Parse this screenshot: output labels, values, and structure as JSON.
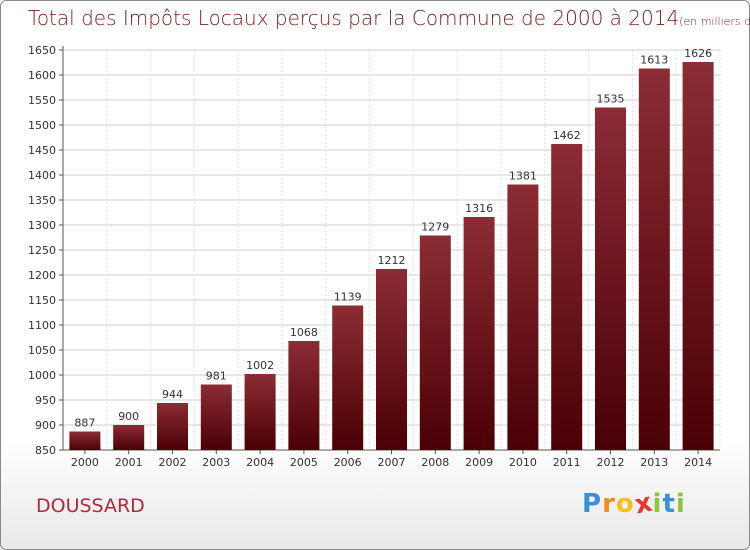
{
  "chart_data": {
    "type": "bar",
    "title": "Total des Impôts Locaux perçus par la Commune de 2000 à 2014",
    "subtitle": "(en milliers d'€)",
    "categories": [
      "2000",
      "2001",
      "2002",
      "2003",
      "2004",
      "2005",
      "2006",
      "2007",
      "2008",
      "2009",
      "2010",
      "2011",
      "2012",
      "2013",
      "2014"
    ],
    "values": [
      887,
      900,
      944,
      981,
      1002,
      1068,
      1139,
      1212,
      1279,
      1316,
      1381,
      1462,
      1535,
      1613,
      1626
    ],
    "ylim": [
      850,
      1650
    ],
    "yticks": [
      850,
      900,
      950,
      1000,
      1050,
      1100,
      1150,
      1200,
      1250,
      1300,
      1350,
      1400,
      1450,
      1500,
      1550,
      1600,
      1650
    ],
    "grid": true,
    "xlabel": "",
    "ylabel": ""
  },
  "commune": "DOUSSARD",
  "logo": {
    "letters": [
      "P",
      "r",
      "o",
      "x",
      "i",
      "t",
      "i"
    ],
    "colors": [
      "#3a8fd6",
      "#f28c1e",
      "#f5c118",
      "#e8342a",
      "#8cc63f",
      "#3a8fd6",
      "#8cc63f"
    ]
  },
  "colors": {
    "bar_top": "#8c2c34",
    "bar_bottom": "#4a0004"
  }
}
